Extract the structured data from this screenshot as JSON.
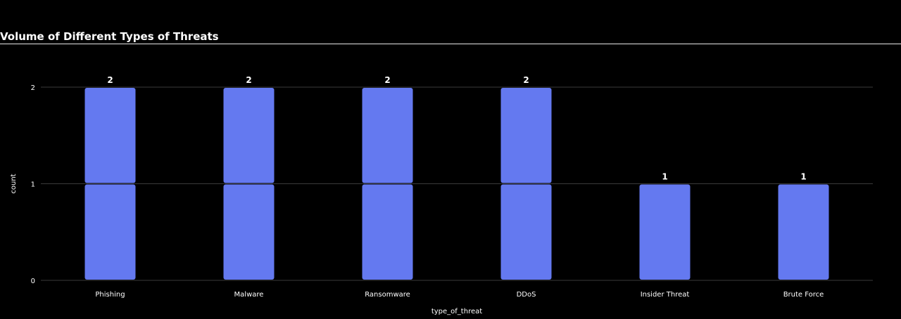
{
  "chart_data": {
    "type": "bar",
    "title": "Volume of Different Types of Threats",
    "xlabel": "type_of_threat",
    "ylabel": "count",
    "categories": [
      "Phishing",
      "Malware",
      "Ransomware",
      "DDoS",
      "Insider Threat",
      "Brute Force"
    ],
    "values": [
      2,
      2,
      2,
      2,
      1,
      1
    ],
    "ylim": [
      0,
      2
    ],
    "yticks": [
      0,
      1,
      2
    ],
    "grid": true,
    "bar_color": "#6479f0",
    "background": "#000000",
    "gridline_color": "#3a3a3a"
  }
}
